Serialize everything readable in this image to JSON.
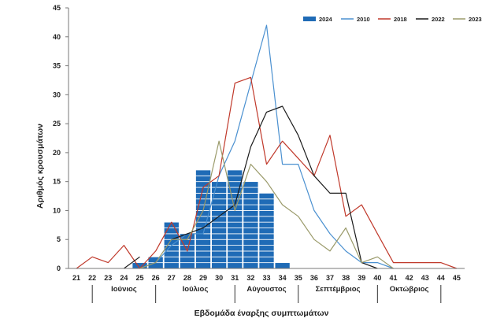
{
  "chart_data": {
    "type": "bar",
    "xlabel": "Εβδομάδα έναρξης συμπτωμάτων",
    "ylabel": "Αριθμός κρουσμάτων",
    "ylim": [
      0,
      45
    ],
    "yticks": [
      "0",
      "5",
      "10",
      "15",
      "20",
      "25",
      "30",
      "35",
      "40",
      "45"
    ],
    "x": [
      21,
      22,
      23,
      24,
      25,
      26,
      27,
      28,
      29,
      30,
      31,
      32,
      33,
      34,
      35,
      36,
      37,
      38,
      39,
      40,
      41,
      42,
      43,
      44,
      45
    ],
    "xticks": [
      "21",
      "22",
      "23",
      "24",
      "25",
      "26",
      "27",
      "28",
      "29",
      "30",
      "31",
      "32",
      "33",
      "34",
      "35",
      "36",
      "37",
      "38",
      "39",
      "40",
      "41",
      "42",
      "43",
      "44",
      "45"
    ],
    "months": [
      {
        "label": "Ιούνιος",
        "start": 22,
        "end": 26
      },
      {
        "label": "Ιούλιος",
        "start": 26,
        "end": 31
      },
      {
        "label": "Αύγουστος",
        "start": 31,
        "end": 35
      },
      {
        "label": "Σεπτέμβριος",
        "start": 35,
        "end": 40
      },
      {
        "label": "Οκτώβριος",
        "start": 40,
        "end": 44
      }
    ],
    "bar_series": {
      "name": "2024",
      "color": "#1f6bb6",
      "weeks": [
        25,
        26,
        27,
        28,
        29,
        30,
        31,
        32,
        33,
        34
      ],
      "values": [
        1,
        2,
        8,
        6,
        17,
        15,
        17,
        15,
        13,
        1
      ]
    },
    "series": [
      {
        "name": "2010",
        "color": "#4a90d0",
        "values": [
          null,
          null,
          null,
          null,
          0,
          1,
          4,
          6,
          6,
          16,
          22,
          32,
          42,
          18,
          18,
          10,
          6,
          3,
          1,
          1,
          0,
          null,
          null,
          null,
          null
        ]
      },
      {
        "name": "2018",
        "color": "#c0392b",
        "values": [
          0,
          2,
          1,
          4,
          0,
          3,
          8,
          3,
          14,
          16,
          32,
          33,
          18,
          22,
          19,
          16,
          23,
          9,
          11,
          6,
          1,
          1,
          1,
          1,
          0
        ]
      },
      {
        "name": "2022",
        "color": "#1a1a1a",
        "values": [
          null,
          null,
          null,
          0,
          2,
          null,
          5,
          6,
          7,
          9,
          11,
          21,
          27,
          28,
          23,
          16,
          13,
          13,
          1,
          0,
          null,
          null,
          null,
          null,
          null
        ]
      },
      {
        "name": "2023",
        "color": "#9a9a6a",
        "values": [
          null,
          null,
          null,
          null,
          0,
          1,
          5,
          5,
          10,
          22,
          10,
          18,
          15,
          11,
          9,
          5,
          3,
          7,
          1,
          2,
          0,
          null,
          null,
          null,
          null
        ]
      }
    ],
    "legend": {
      "position": "top-right",
      "entries": [
        "2024",
        "2010",
        "2018",
        "2022",
        "2023"
      ]
    }
  }
}
